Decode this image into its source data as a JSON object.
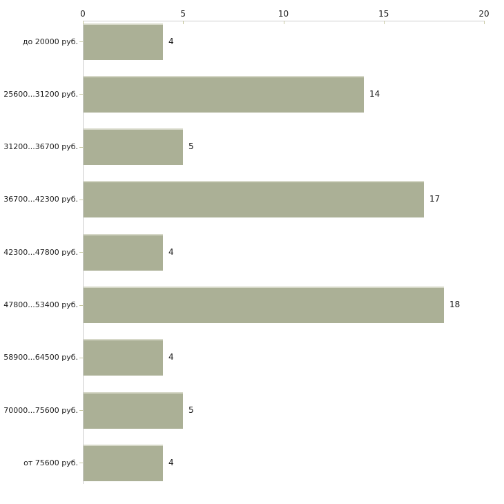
{
  "chart_data": {
    "type": "bar",
    "orientation": "horizontal",
    "title": "",
    "xlabel": "",
    "ylabel": "",
    "grid": false,
    "legend": false,
    "categories": [
      "до 20000 руб.",
      "25600...31200 руб.",
      "31200...36700 руб.",
      "36700...42300 руб.",
      "42300...47800 руб.",
      "47800...53400 руб.",
      "58900...64500 руб.",
      "70000...75600 руб.",
      "от 75600 руб."
    ],
    "values": [
      4,
      14,
      5,
      17,
      4,
      18,
      4,
      5,
      4
    ],
    "x_ticks": [
      0,
      5,
      10,
      15,
      20
    ],
    "xlim": [
      0,
      20
    ],
    "axis_position": "top",
    "colors": {
      "bar": "#abb096",
      "bar_edge": "#d6d8c8",
      "axis": "#cccccc",
      "tick": "#c6c79f",
      "text": "#1c1c1c"
    }
  }
}
